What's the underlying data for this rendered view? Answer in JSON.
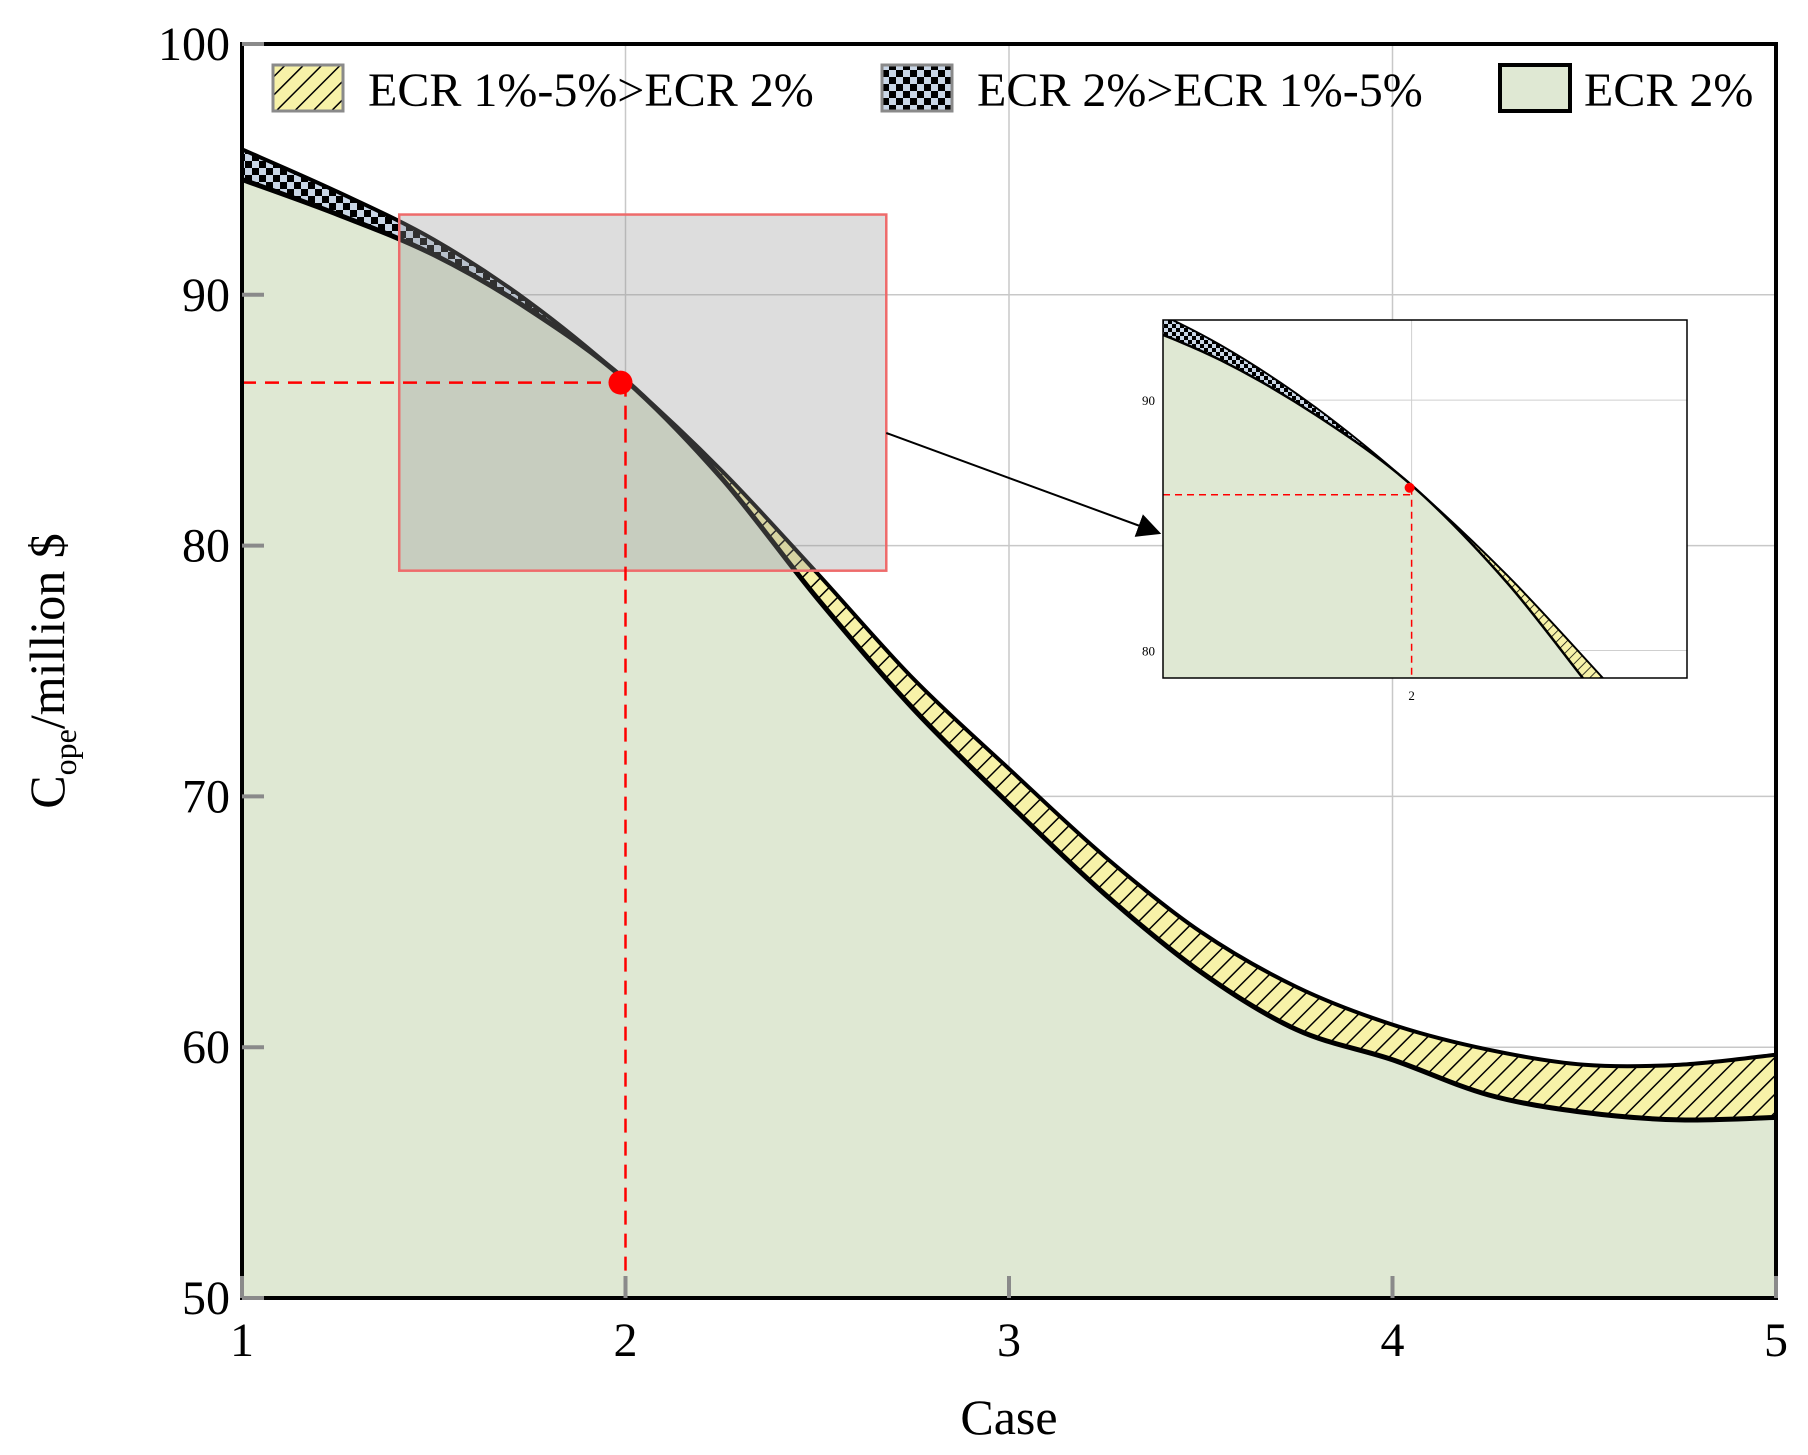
{
  "chart_data": {
    "type": "area",
    "xlabel": "Case",
    "ylabel_main": "C",
    "ylabel_sub": "ope",
    "ylabel_rest": "/million $",
    "xlim": [
      1,
      5
    ],
    "ylim": [
      50,
      100
    ],
    "x_ticks": [
      1,
      2,
      3,
      4,
      5
    ],
    "y_ticks": [
      50,
      60,
      70,
      80,
      90,
      100
    ],
    "grid": true,
    "legend_position": "top",
    "legend": [
      {
        "label": "ECR 1%-5%>ECR 2%",
        "pattern": "hatch",
        "color": "#f7f2a8"
      },
      {
        "label": "ECR 2%>ECR 1%-5%",
        "pattern": "checker",
        "color": "#000000"
      },
      {
        "label": "ECR 2%",
        "pattern": "solid",
        "color": "#dfe8d3"
      }
    ],
    "series": [
      {
        "name": "ECR 1%-5%",
        "x": [
          1.0,
          1.25,
          1.5,
          1.75,
          2.0,
          2.25,
          2.5,
          2.75,
          3.0,
          3.25,
          3.5,
          3.75,
          4.0,
          4.25,
          4.5,
          4.75,
          5.0
        ],
        "values": [
          95.8,
          94.1,
          92.2,
          89.7,
          86.6,
          83.0,
          78.9,
          74.7,
          71.1,
          67.6,
          64.6,
          62.4,
          60.9,
          59.9,
          59.3,
          59.3,
          59.7
        ]
      },
      {
        "name": "ECR 2%",
        "x": [
          1.0,
          1.25,
          1.5,
          1.75,
          2.0,
          2.25,
          2.5,
          2.75,
          3.0,
          3.25,
          3.5,
          3.75,
          4.0,
          4.25,
          4.5,
          4.75,
          5.0
        ],
        "values": [
          94.6,
          93.2,
          91.6,
          89.4,
          86.6,
          82.7,
          77.9,
          73.5,
          69.7,
          66.1,
          63.0,
          60.7,
          59.5,
          58.1,
          57.4,
          57.1,
          57.2
        ]
      }
    ],
    "highlight_point": {
      "x": 2.0,
      "y": 86.5,
      "color": "#ff0000"
    },
    "zoom_region": {
      "x": [
        1.41,
        2.68
      ],
      "y": [
        79,
        93.2
      ]
    },
    "inset": {
      "x_ticks": [
        2
      ],
      "y_ticks": [
        80,
        90
      ],
      "xlim": [
        1.35,
        2.72
      ],
      "ylim": [
        78.9,
        93.2
      ]
    }
  }
}
